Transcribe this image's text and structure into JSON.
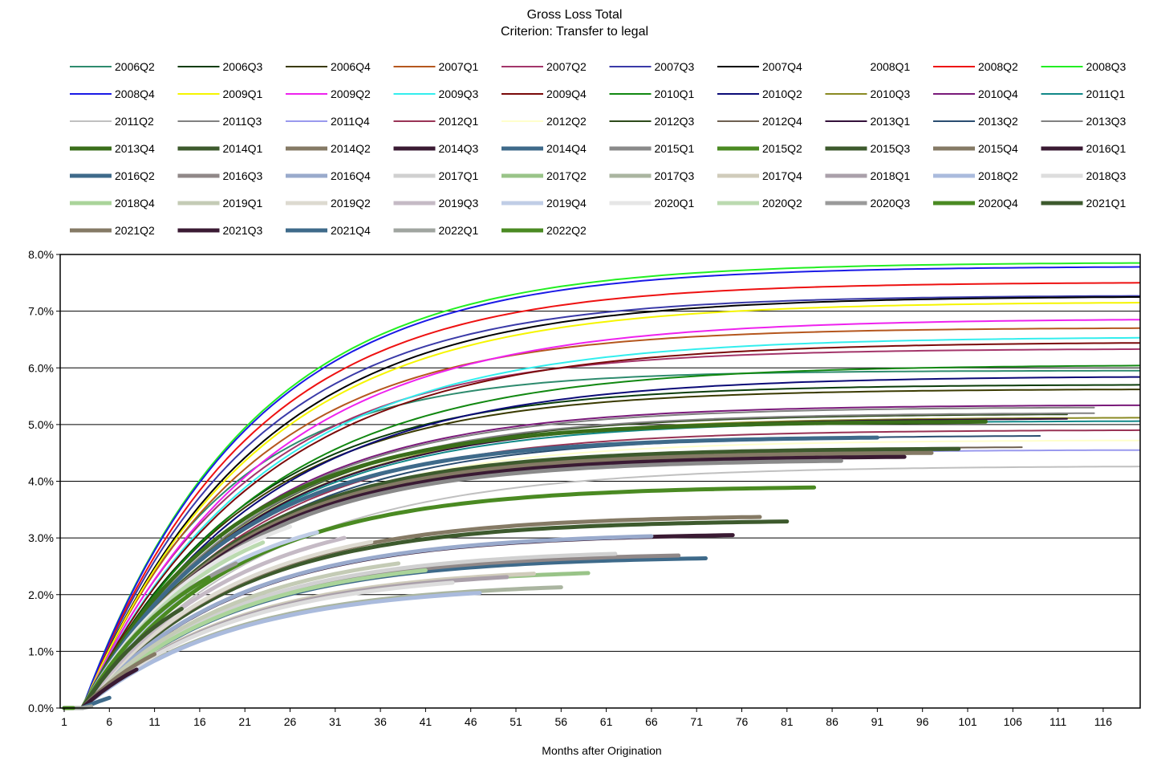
{
  "chart_data": {
    "type": "line",
    "title": "Gross Loss Total",
    "subtitle": "Criterion: Transfer to legal",
    "xlabel": "Months after Origination",
    "ylabel": "",
    "xlim": [
      1,
      120
    ],
    "ylim": [
      0,
      8
    ],
    "y_unit": "%",
    "x_ticks": [
      "1",
      "6",
      "11",
      "16",
      "21",
      "26",
      "31",
      "36",
      "41",
      "46",
      "51",
      "56",
      "61",
      "66",
      "71",
      "76",
      "81",
      "86",
      "91",
      "96",
      "101",
      "106",
      "111",
      "116"
    ],
    "y_ticks": [
      "0.0%",
      "1.0%",
      "2.0%",
      "3.0%",
      "4.0%",
      "5.0%",
      "6.0%",
      "7.0%",
      "8.0%"
    ],
    "grid": true,
    "legend_position": "top",
    "series": [
      {
        "name": "2006Q2",
        "color": "#2e8b6e",
        "width": 2,
        "end": 120,
        "final": 5.95,
        "k": 0.065
      },
      {
        "name": "2006Q3",
        "color": "#0b3d0b",
        "width": 2,
        "end": 120,
        "final": 5.7,
        "k": 0.055
      },
      {
        "name": "2006Q4",
        "color": "#3a3a00",
        "width": 2,
        "end": 120,
        "final": 5.62,
        "k": 0.055
      },
      {
        "name": "2007Q1",
        "color": "#b5571e",
        "width": 2,
        "end": 120,
        "final": 6.7,
        "k": 0.055
      },
      {
        "name": "2007Q2",
        "color": "#a3356a",
        "width": 2,
        "end": 120,
        "final": 6.33,
        "k": 0.055
      },
      {
        "name": "2007Q3",
        "color": "#3a3aa8",
        "width": 2,
        "end": 120,
        "final": 7.27,
        "k": 0.055
      },
      {
        "name": "2007Q4",
        "color": "#000000",
        "width": 2,
        "end": 120,
        "final": 7.25,
        "k": 0.052
      },
      {
        "name": "2008Q1",
        "color": "#ffffff",
        "width": 2,
        "end": 120,
        "final": 7.0,
        "k": 0.055
      },
      {
        "name": "2008Q2",
        "color": "#ee1111",
        "width": 2,
        "end": 120,
        "final": 7.5,
        "k": 0.055
      },
      {
        "name": "2008Q3",
        "color": "#22ee22",
        "width": 2,
        "end": 120,
        "final": 7.85,
        "k": 0.055
      },
      {
        "name": "2008Q4",
        "color": "#1a1ae6",
        "width": 2,
        "end": 120,
        "final": 7.78,
        "k": 0.055
      },
      {
        "name": "2009Q1",
        "color": "#f5f500",
        "width": 2,
        "end": 120,
        "final": 7.15,
        "k": 0.052
      },
      {
        "name": "2009Q2",
        "color": "#ee22ee",
        "width": 2,
        "end": 120,
        "final": 6.85,
        "k": 0.05
      },
      {
        "name": "2009Q3",
        "color": "#33eeee",
        "width": 2,
        "end": 120,
        "final": 6.53,
        "k": 0.05
      },
      {
        "name": "2009Q4",
        "color": "#7a0a0a",
        "width": 2,
        "end": 120,
        "final": 6.44,
        "k": 0.05
      },
      {
        "name": "2010Q1",
        "color": "#118811",
        "width": 2,
        "end": 120,
        "final": 6.04,
        "k": 0.05
      },
      {
        "name": "2010Q2",
        "color": "#0b0b77",
        "width": 2,
        "end": 120,
        "final": 5.84,
        "k": 0.05
      },
      {
        "name": "2010Q3",
        "color": "#8a8a22",
        "width": 2,
        "end": 120,
        "final": 5.12,
        "k": 0.055
      },
      {
        "name": "2010Q4",
        "color": "#7a1a7a",
        "width": 2,
        "end": 120,
        "final": 5.34,
        "k": 0.055
      },
      {
        "name": "2011Q1",
        "color": "#118888",
        "width": 2,
        "end": 120,
        "final": 5.06,
        "k": 0.055
      },
      {
        "name": "2011Q2",
        "color": "#c0c0c0",
        "width": 2,
        "end": 120,
        "final": 4.26,
        "k": 0.05
      },
      {
        "name": "2011Q3",
        "color": "#808080",
        "width": 2,
        "end": 115,
        "final": 5.3,
        "k": 0.055
      },
      {
        "name": "2011Q4",
        "color": "#9999ee",
        "width": 2,
        "end": 120,
        "final": 4.55,
        "k": 0.055
      },
      {
        "name": "2012Q1",
        "color": "#993355",
        "width": 2,
        "end": 120,
        "final": 4.9,
        "k": 0.055
      },
      {
        "name": "2012Q2",
        "color": "#ffffcc",
        "width": 2,
        "end": 120,
        "final": 4.72,
        "k": 0.055
      },
      {
        "name": "2012Q3",
        "color": "#2d4a1a",
        "width": 2,
        "end": 112,
        "final": 5.18,
        "k": 0.055
      },
      {
        "name": "2012Q4",
        "color": "#6e6050",
        "width": 2,
        "end": 107,
        "final": 4.6,
        "k": 0.055
      },
      {
        "name": "2013Q1",
        "color": "#33103a",
        "width": 2,
        "end": 112,
        "final": 5.1,
        "k": 0.055
      },
      {
        "name": "2013Q2",
        "color": "#2a4d70",
        "width": 2,
        "end": 109,
        "final": 4.8,
        "k": 0.055
      },
      {
        "name": "2013Q3",
        "color": "#808080",
        "width": 2,
        "end": 115,
        "final": 5.2,
        "k": 0.055
      },
      {
        "name": "2013Q4",
        "color": "#3a6e1a",
        "width": 5,
        "end": 103,
        "final": 5.05,
        "k": 0.06
      },
      {
        "name": "2014Q1",
        "color": "#3d5a2d",
        "width": 5,
        "end": 100,
        "final": 4.57,
        "k": 0.06
      },
      {
        "name": "2014Q2",
        "color": "#857a65",
        "width": 5,
        "end": 97,
        "final": 4.5,
        "k": 0.06
      },
      {
        "name": "2014Q3",
        "color": "#3a1a33",
        "width": 5,
        "end": 94,
        "final": 4.43,
        "k": 0.06
      },
      {
        "name": "2014Q4",
        "color": "#3e6a8a",
        "width": 5,
        "end": 91,
        "final": 4.77,
        "k": 0.06
      },
      {
        "name": "2015Q1",
        "color": "#8a8a8a",
        "width": 5,
        "end": 87,
        "final": 4.36,
        "k": 0.06
      },
      {
        "name": "2015Q2",
        "color": "#4a8a22",
        "width": 5,
        "end": 84,
        "final": 3.89,
        "k": 0.06
      },
      {
        "name": "2015Q3",
        "color": "#3d5a2d",
        "width": 5,
        "end": 81,
        "final": 3.29,
        "k": 0.06
      },
      {
        "name": "2015Q4",
        "color": "#857a65",
        "width": 5,
        "end": 78,
        "final": 3.37,
        "k": 0.06
      },
      {
        "name": "2016Q1",
        "color": "#3a1a33",
        "width": 5,
        "end": 75,
        "final": 3.05,
        "k": 0.06
      },
      {
        "name": "2016Q2",
        "color": "#3e6a8a",
        "width": 5,
        "end": 72,
        "final": 2.64,
        "k": 0.06
      },
      {
        "name": "2016Q3",
        "color": "#908888",
        "width": 5,
        "end": 69,
        "final": 2.69,
        "k": 0.06
      },
      {
        "name": "2016Q4",
        "color": "#99aacc",
        "width": 5,
        "end": 66,
        "final": 3.03,
        "k": 0.06
      },
      {
        "name": "2017Q1",
        "color": "#d0d0d0",
        "width": 5,
        "end": 62,
        "final": 2.72,
        "k": 0.06
      },
      {
        "name": "2017Q2",
        "color": "#99c488",
        "width": 5,
        "end": 59,
        "final": 2.38,
        "k": 0.06
      },
      {
        "name": "2017Q3",
        "color": "#aab5a0",
        "width": 5,
        "end": 56,
        "final": 2.13,
        "k": 0.06
      },
      {
        "name": "2017Q4",
        "color": "#d0ccbb",
        "width": 5,
        "end": 53,
        "final": 2.37,
        "k": 0.06
      },
      {
        "name": "2018Q1",
        "color": "#aaa0aa",
        "width": 5,
        "end": 50,
        "final": 2.31,
        "k": 0.06
      },
      {
        "name": "2018Q2",
        "color": "#aabbdd",
        "width": 5,
        "end": 47,
        "final": 2.03,
        "k": 0.06
      },
      {
        "name": "2018Q3",
        "color": "#dddddd",
        "width": 5,
        "end": 44,
        "final": 2.21,
        "k": 0.06
      },
      {
        "name": "2018Q4",
        "color": "#aad49a",
        "width": 5,
        "end": 41,
        "final": 2.43,
        "k": 0.06
      },
      {
        "name": "2019Q1",
        "color": "#c4cbb5",
        "width": 5,
        "end": 38,
        "final": 2.55,
        "k": 0.06
      },
      {
        "name": "2019Q2",
        "color": "#dddad0",
        "width": 5,
        "end": 35,
        "final": 2.93,
        "k": 0.06
      },
      {
        "name": "2019Q3",
        "color": "#c5bac5",
        "width": 5,
        "end": 32,
        "final": 3.0,
        "k": 0.06
      },
      {
        "name": "2019Q4",
        "color": "#c0cde6",
        "width": 5,
        "end": 29,
        "final": 3.1,
        "k": 0.07
      },
      {
        "name": "2020Q1",
        "color": "#e6e6e6",
        "width": 5,
        "end": 26,
        "final": 3.2,
        "k": 0.07
      },
      {
        "name": "2020Q2",
        "color": "#bbdab0",
        "width": 5,
        "end": 23,
        "final": 2.92,
        "k": 0.07
      },
      {
        "name": "2020Q3",
        "color": "#9a9a9a",
        "width": 5,
        "end": 20,
        "final": 2.55,
        "k": 0.08
      },
      {
        "name": "2020Q4",
        "color": "#4a8a22",
        "width": 5,
        "end": 17,
        "final": 2.3,
        "k": 0.08
      },
      {
        "name": "2021Q1",
        "color": "#3d5a2d",
        "width": 5,
        "end": 14,
        "final": 1.75,
        "k": 0.09
      },
      {
        "name": "2021Q2",
        "color": "#857a65",
        "width": 5,
        "end": 11,
        "final": 0.95,
        "k": 0.09
      },
      {
        "name": "2021Q3",
        "color": "#3a1a33",
        "width": 5,
        "end": 9,
        "final": 0.68,
        "k": 0.09
      },
      {
        "name": "2021Q4",
        "color": "#3e6a8a",
        "width": 5,
        "end": 6,
        "final": 0.18,
        "k": 0.09
      },
      {
        "name": "2022Q1",
        "color": "#a0a5a0",
        "width": 5,
        "end": 4,
        "final": 0.03,
        "k": 0.09
      },
      {
        "name": "2022Q2",
        "color": "#4a8a22",
        "width": 5,
        "end": 2,
        "final": 0.0,
        "k": 0.09
      }
    ]
  }
}
